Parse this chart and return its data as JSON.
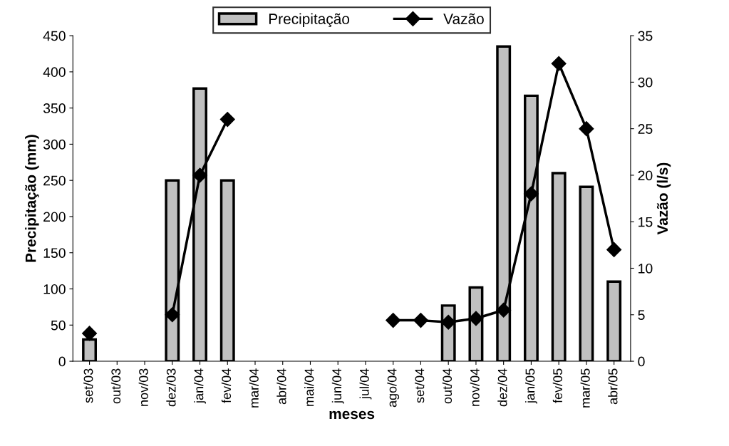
{
  "chart_data": {
    "type": "bar",
    "xlabel": "meses",
    "ylabel": "Precipitação (mm)",
    "y2label": "Vazão (l/s)",
    "categories": [
      "set/03",
      "out/03",
      "nov/03",
      "dez/03",
      "jan/04",
      "fev/04",
      "mar/04",
      "abr/04",
      "mai/04",
      "jun/04",
      "jul/04",
      "ago/04",
      "set/04",
      "out/04",
      "nov/04",
      "dez/04",
      "jan/05",
      "fev/05",
      "mar/05",
      "abr/05"
    ],
    "series": [
      {
        "name": "Precipitação",
        "color": "#c0c0c0",
        "values": [
          30,
          null,
          null,
          250,
          377,
          250,
          null,
          null,
          null,
          null,
          null,
          null,
          null,
          77,
          102,
          435,
          367,
          260,
          241,
          110
        ]
      },
      {
        "name": "Vazão",
        "type": "line",
        "axis": "y2",
        "color": "#000000",
        "marker": "diamond",
        "values": [
          3,
          null,
          null,
          5,
          20,
          26,
          null,
          null,
          null,
          null,
          null,
          4.4,
          4.4,
          4.2,
          4.6,
          5.5,
          18,
          32,
          25,
          12
        ]
      }
    ],
    "ylim": [
      0,
      450
    ],
    "yticks": [
      0,
      50,
      100,
      150,
      200,
      250,
      300,
      350,
      400,
      450
    ],
    "y2lim": [
      0,
      35
    ],
    "y2ticks": [
      0,
      5,
      10,
      15,
      20,
      25,
      30,
      35
    ],
    "legend": "top",
    "grid": false
  }
}
